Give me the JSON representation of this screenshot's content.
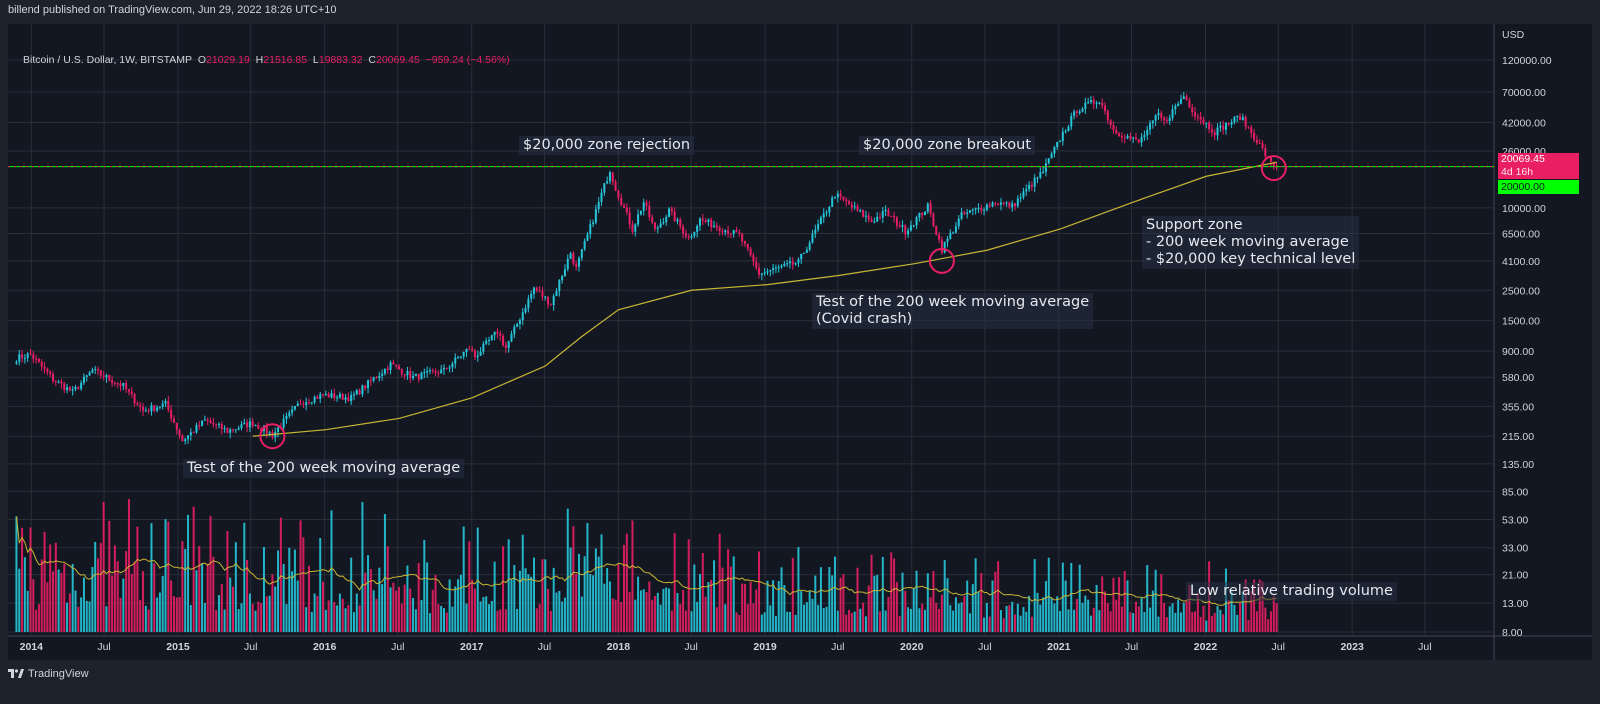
{
  "header": {
    "publisher_line": "billend published on TradingView.com, Jun 29, 2022 18:26 UTC+10"
  },
  "legend": {
    "symbol": "Bitcoin / U.S. Dollar, 1W, BITSTAMP",
    "o_label": "O",
    "o_value": "21029.19",
    "h_label": "H",
    "h_value": "21516.85",
    "l_label": "L",
    "l_value": "19883.32",
    "c_label": "C",
    "c_value": "20069.45",
    "change": "−959.24 (−4.56%)"
  },
  "price_tags": {
    "last_price": "20069.45",
    "countdown": "4d 16h",
    "level": "20000.00"
  },
  "annotations": {
    "rejection": "$20,000 zone rejection",
    "breakout": "$20,000 zone breakout",
    "support": "Support zone\n- 200 week moving average\n- $20,000 key technical level",
    "covid": "Test of the 200 week moving average\n(Covid crash)",
    "test2015": "Test of the 200 week moving average",
    "volume": "Low relative trading volume"
  },
  "footer": {
    "brand": "TradingView"
  },
  "colors": {
    "up": "#26c6da",
    "down": "#e91e63",
    "ma": "#c9b634",
    "level_line": "#00ff00",
    "grid": "#2a2e39",
    "background": "#131722"
  },
  "chart_data": {
    "type": "candlestick",
    "title": "Bitcoin / U.S. Dollar, 1W, BITSTAMP",
    "yscale": "log",
    "ylabel": "USD",
    "y_ticks": [
      "120000.00",
      "70000.00",
      "42000.00",
      "26000.00",
      "10000.00",
      "6500.00",
      "4100.00",
      "2500.00",
      "1500.00",
      "900.00",
      "580.00",
      "355.00",
      "215.00",
      "135.00",
      "85.00",
      "53.00",
      "33.00",
      "21.00",
      "13.00",
      "8.00"
    ],
    "x_ticks": [
      "2014",
      "Jul",
      "2015",
      "Jul",
      "2016",
      "Jul",
      "2017",
      "Jul",
      "2018",
      "Jul",
      "2019",
      "Jul",
      "2020",
      "Jul",
      "2021",
      "Jul",
      "2022",
      "Jul",
      "2023",
      "Jul"
    ],
    "x_range": [
      "2013-11",
      "2023-12"
    ],
    "horizontal_level": 20000,
    "indicators": [
      "200 week moving average",
      "Volume with moving average"
    ],
    "price_keypoints": [
      [
        "2013-11-25",
        800
      ],
      [
        "2013-12-30",
        850
      ],
      [
        "2014-02-24",
        560
      ],
      [
        "2014-04-14",
        450
      ],
      [
        "2014-06-02",
        650
      ],
      [
        "2014-08-18",
        500
      ],
      [
        "2014-10-06",
        330
      ],
      [
        "2014-12-01",
        370
      ],
      [
        "2015-01-12",
        200
      ],
      [
        "2015-03-09",
        280
      ],
      [
        "2015-05-04",
        235
      ],
      [
        "2015-07-06",
        270
      ],
      [
        "2015-08-24",
        220
      ],
      [
        "2015-11-02",
        380
      ],
      [
        "2015-12-28",
        430
      ],
      [
        "2016-03-07",
        410
      ],
      [
        "2016-06-13",
        720
      ],
      [
        "2016-08-08",
        580
      ],
      [
        "2016-10-24",
        650
      ],
      [
        "2016-12-26",
        950
      ],
      [
        "2017-01-09",
        820
      ],
      [
        "2017-03-06",
        1250
      ],
      [
        "2017-03-27",
        950
      ],
      [
        "2017-06-05",
        2600
      ],
      [
        "2017-07-17",
        2000
      ],
      [
        "2017-09-04",
        4700
      ],
      [
        "2017-09-18",
        3600
      ],
      [
        "2017-12-11",
        19000
      ],
      [
        "2017-12-25",
        14000
      ],
      [
        "2018-02-05",
        7000
      ],
      [
        "2018-03-05",
        11000
      ],
      [
        "2018-04-02",
        6800
      ],
      [
        "2018-05-07",
        9500
      ],
      [
        "2018-06-25",
        6000
      ],
      [
        "2018-07-23",
        8200
      ],
      [
        "2018-10-29",
        6300
      ],
      [
        "2018-12-17",
        3300
      ],
      [
        "2019-03-25",
        4000
      ],
      [
        "2019-06-24",
        12500
      ],
      [
        "2019-09-23",
        8000
      ],
      [
        "2019-10-28",
        9300
      ],
      [
        "2019-12-16",
        6800
      ],
      [
        "2020-02-10",
        10200
      ],
      [
        "2020-03-16",
        5000
      ],
      [
        "2020-05-04",
        8800
      ],
      [
        "2020-07-27",
        11000
      ],
      [
        "2020-09-07",
        10300
      ],
      [
        "2020-11-23",
        18500
      ],
      [
        "2020-12-28",
        29000
      ],
      [
        "2021-01-11",
        35000
      ],
      [
        "2021-02-15",
        52000
      ],
      [
        "2021-04-12",
        62000
      ],
      [
        "2021-05-17",
        37000
      ],
      [
        "2021-07-19",
        30000
      ],
      [
        "2021-09-06",
        48000
      ],
      [
        "2021-09-20",
        42000
      ],
      [
        "2021-11-08",
        66000
      ],
      [
        "2021-12-06",
        49000
      ],
      [
        "2022-01-24",
        36000
      ],
      [
        "2022-03-28",
        46500
      ],
      [
        "2022-05-09",
        31000
      ],
      [
        "2022-06-13",
        21000
      ],
      [
        "2022-06-27",
        20069
      ]
    ],
    "ma200_keypoints": [
      [
        "2015-07-06",
        215
      ],
      [
        "2016-01-04",
        240
      ],
      [
        "2016-07-04",
        290
      ],
      [
        "2017-01-02",
        410
      ],
      [
        "2017-07-03",
        700
      ],
      [
        "2017-10-02",
        1150
      ],
      [
        "2018-01-01",
        1800
      ],
      [
        "2018-07-02",
        2500
      ],
      [
        "2019-01-07",
        2750
      ],
      [
        "2019-07-01",
        3200
      ],
      [
        "2020-01-06",
        3900
      ],
      [
        "2020-07-06",
        4900
      ],
      [
        "2021-01-04",
        7000
      ],
      [
        "2021-07-05",
        11000
      ],
      [
        "2022-01-03",
        17000
      ],
      [
        "2022-06-27",
        21500
      ]
    ],
    "volume_note": "Volume bars colored by candle direction, scaled to lower pane"
  }
}
